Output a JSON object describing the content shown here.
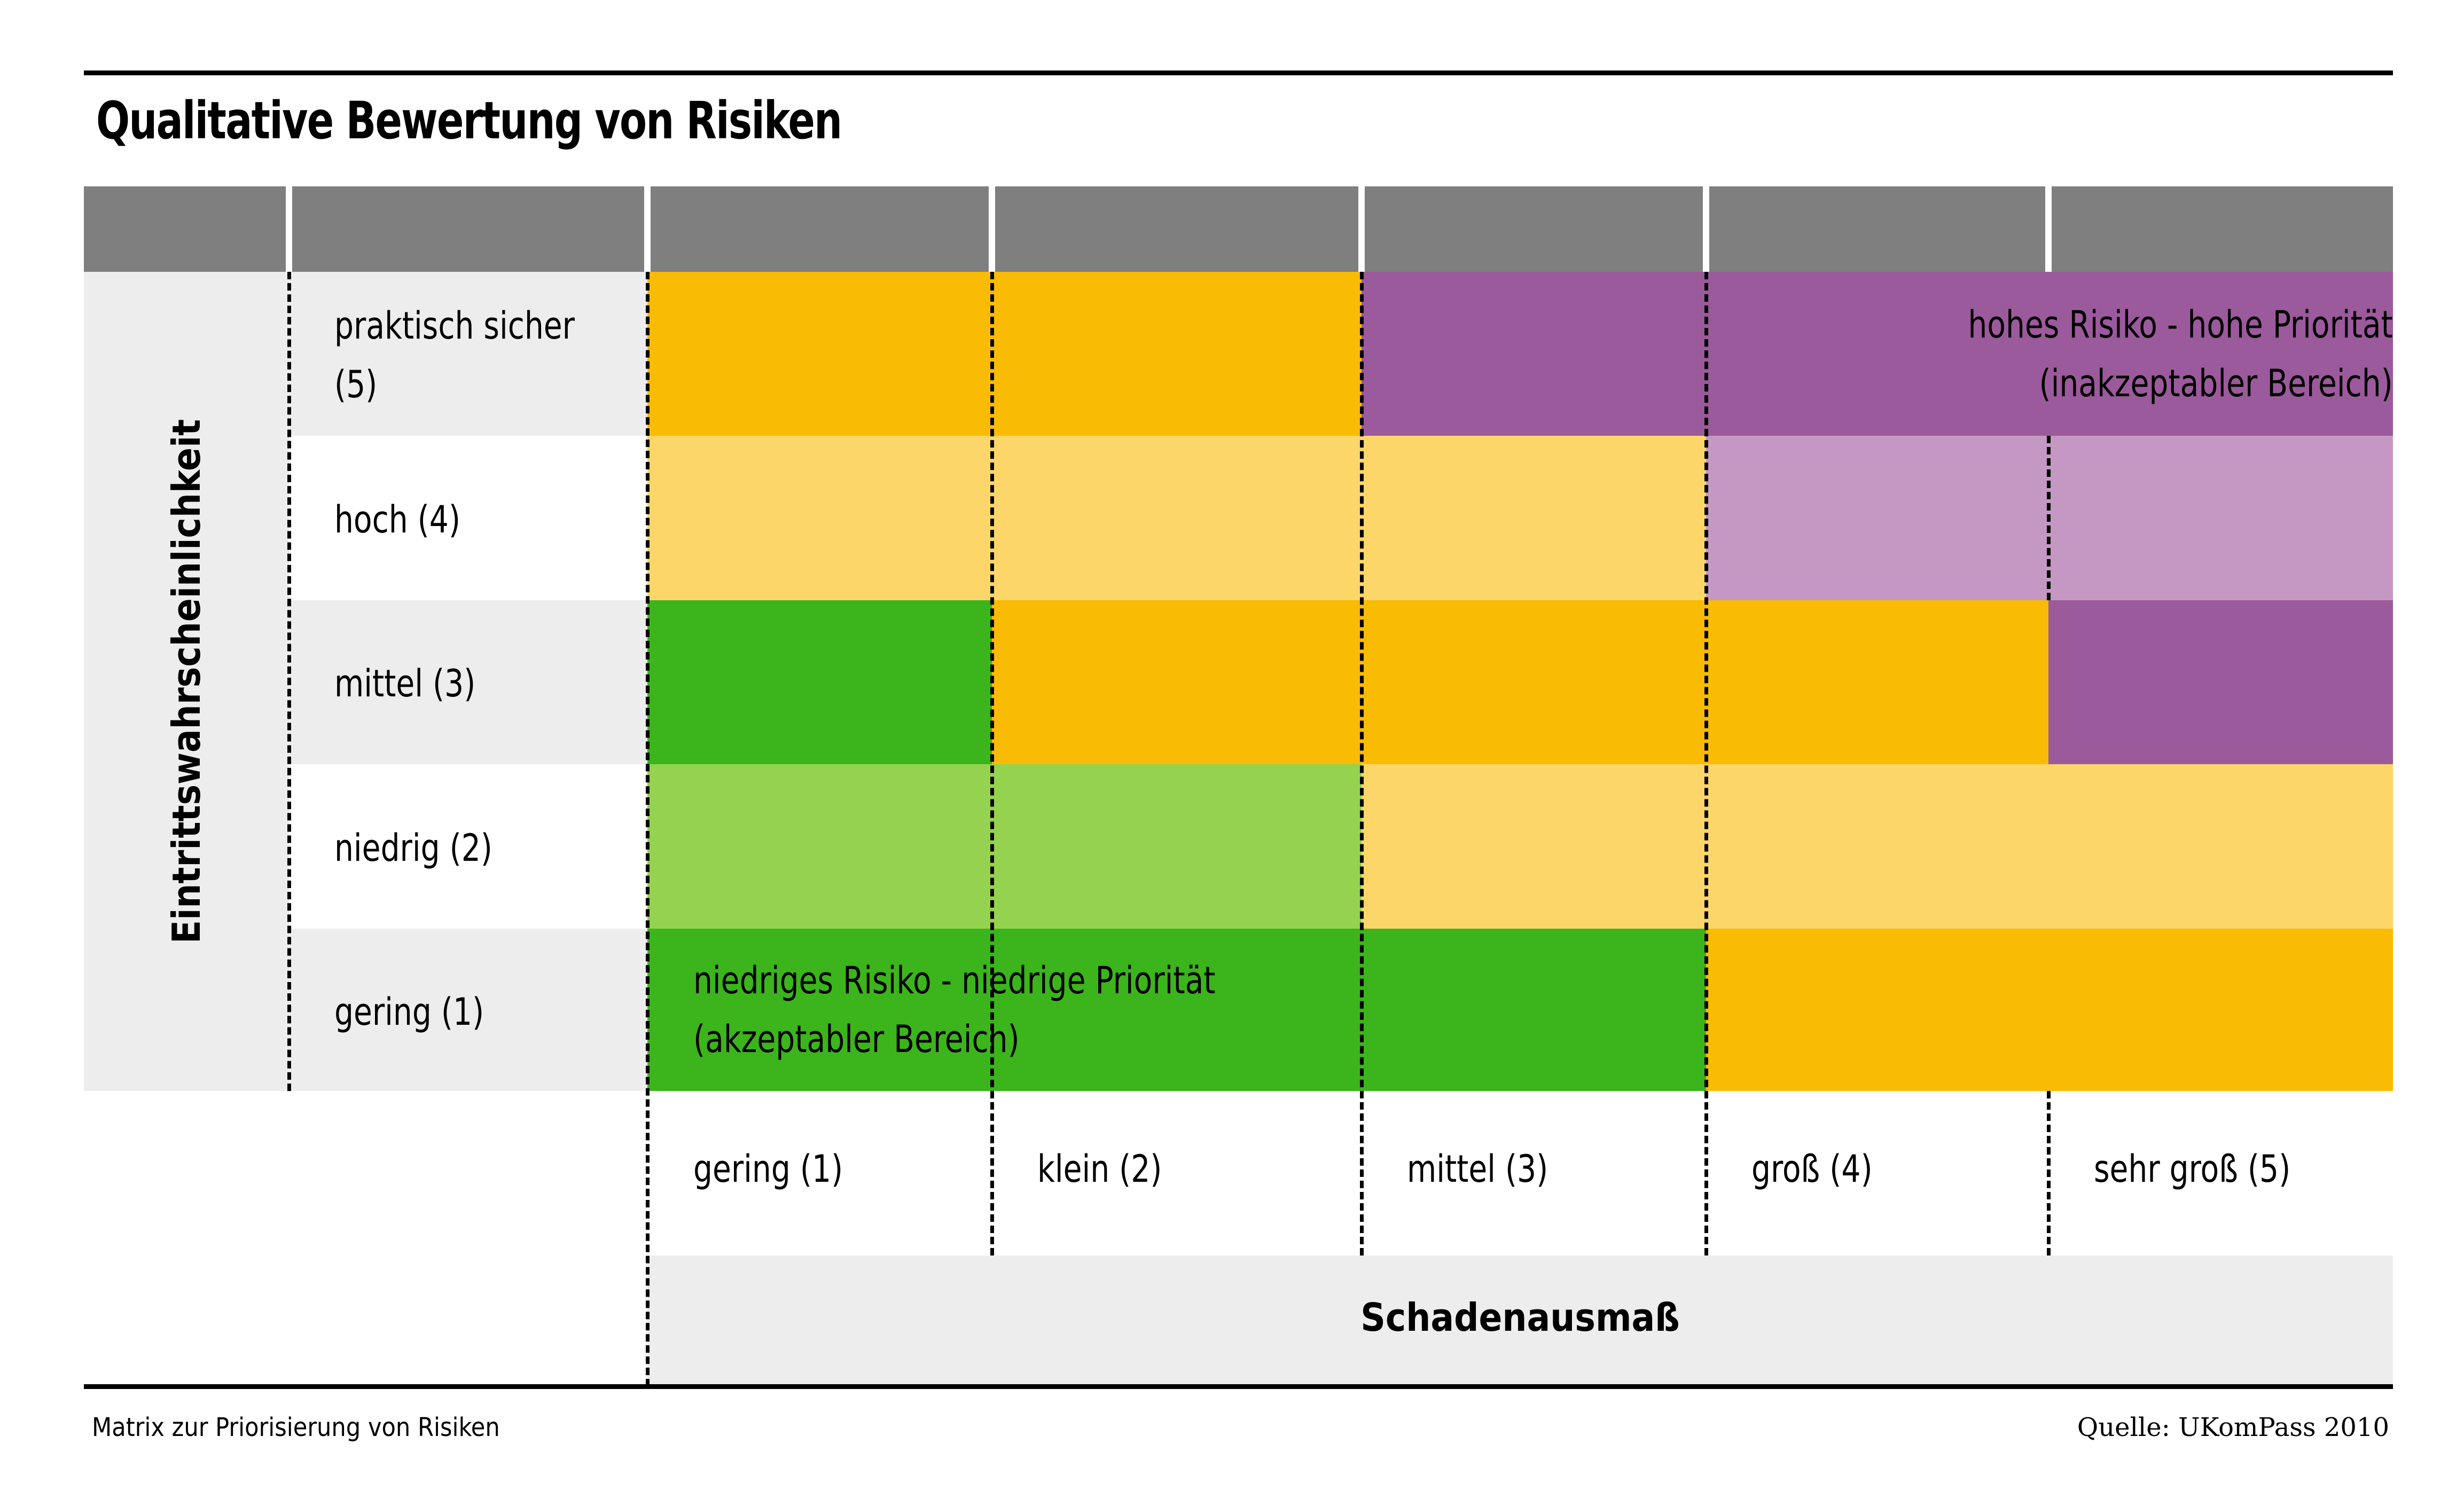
{
  "title": "Qualitative Bewertung von Risiken",
  "footer": {
    "caption": "Matrix zur Priorisierung von Risiken",
    "source": "Quelle: UKomPass 2010"
  },
  "colors": {
    "header_gray": "#7f7f7f",
    "band_gray": "#ededed",
    "orange": "#f9bb03",
    "light_orange": "#fdd669",
    "purple": "#9b5a9b",
    "light_purple": "#c598c4",
    "green": "#3cb41c",
    "light_green": "#95d250"
  },
  "chart_data": {
    "type": "heatmap",
    "title": "Qualitative Bewertung von Risiken",
    "ylabel": "Eintrittswahrscheinlichkeit",
    "xlabel": "Schadenausmaß",
    "y_categories": [
      "praktisch sicher (5)",
      "hoch (4)",
      "mittel (3)",
      "niedrig (2)",
      "gering (1)"
    ],
    "x_categories": [
      "gering (1)",
      "klein (2)",
      "mittel (3)",
      "groß (4)",
      "sehr groß (5)"
    ],
    "cells": [
      [
        "orange",
        "orange",
        "purple",
        "purple",
        "purple"
      ],
      [
        "light_orange",
        "light_orange",
        "light_orange",
        "light_purple",
        "light_purple"
      ],
      [
        "green",
        "orange",
        "orange",
        "orange",
        "purple"
      ],
      [
        "light_green",
        "light_green",
        "light_orange",
        "light_orange",
        "light_orange"
      ],
      [
        "green",
        "green",
        "green",
        "orange",
        "orange"
      ]
    ],
    "annotations": [
      {
        "text_line1": "hohes Risiko - hohe Priorität",
        "text_line2": "(inakzeptabler Bereich)",
        "zone": "high"
      },
      {
        "text_line1": "niedriges Risiko - niedrige Priorität",
        "text_line2": "(akzeptabler Bereich)",
        "zone": "low"
      }
    ]
  }
}
